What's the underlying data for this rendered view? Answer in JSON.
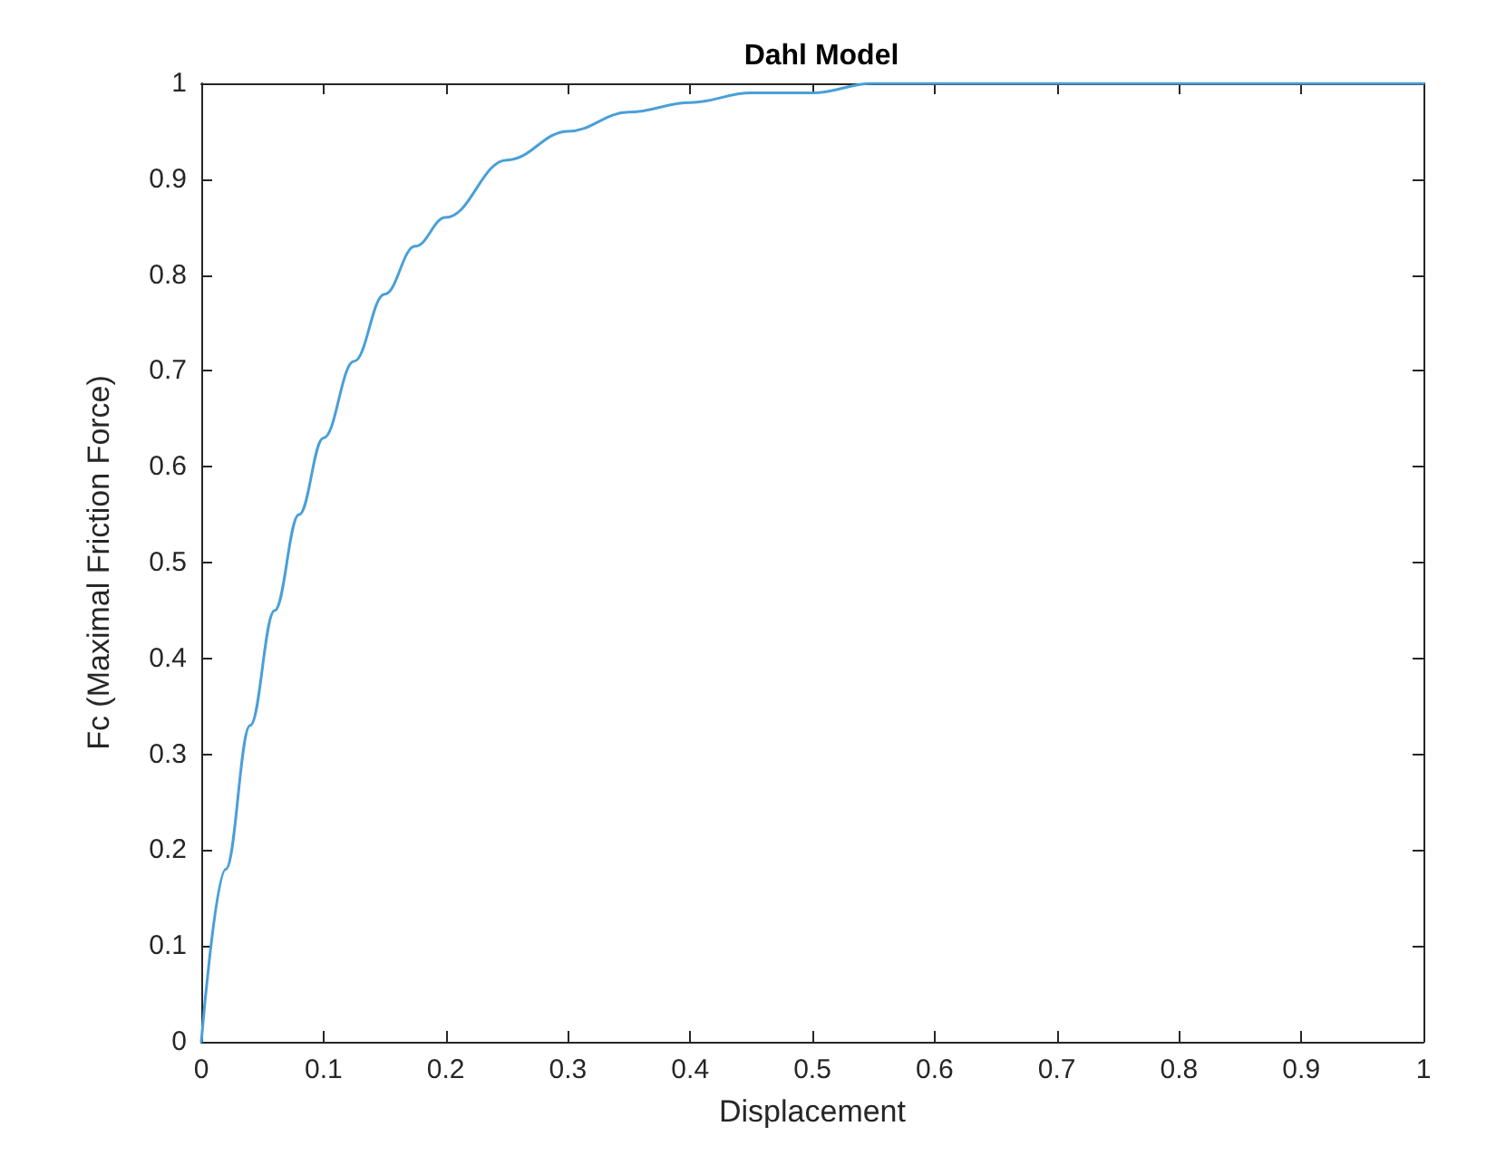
{
  "chart_data": {
    "type": "line",
    "title": "Dahl Model",
    "xlabel": "Displacement",
    "ylabel": "Fc (Maximal Friction Force)",
    "x": [
      0,
      0.02,
      0.04,
      0.06,
      0.08,
      0.1,
      0.125,
      0.15,
      0.175,
      0.2,
      0.25,
      0.3,
      0.35,
      0.4,
      0.45,
      0.5,
      0.55,
      0.6,
      0.7,
      0.8,
      0.9,
      1
    ],
    "series": [
      {
        "color": "#4a9fd8",
        "values": [
          0,
          0.18,
          0.33,
          0.45,
          0.55,
          0.63,
          0.71,
          0.78,
          0.83,
          0.86,
          0.92,
          0.95,
          0.97,
          0.98,
          0.99,
          0.99,
          1,
          1,
          1,
          1,
          1,
          1
        ]
      }
    ],
    "xlim": [
      0,
      1
    ],
    "xticks": [
      0,
      0.1,
      0.2,
      0.3,
      0.4,
      0.5,
      0.6,
      0.7,
      0.8,
      0.9,
      1
    ],
    "ylim": [
      0,
      1
    ],
    "yticks": [
      0,
      0.1,
      0.2,
      0.3,
      0.4,
      0.5,
      0.6,
      0.7,
      0.8,
      0.9,
      1
    ],
    "grid": false,
    "marker": "none",
    "line_style": "solid"
  }
}
